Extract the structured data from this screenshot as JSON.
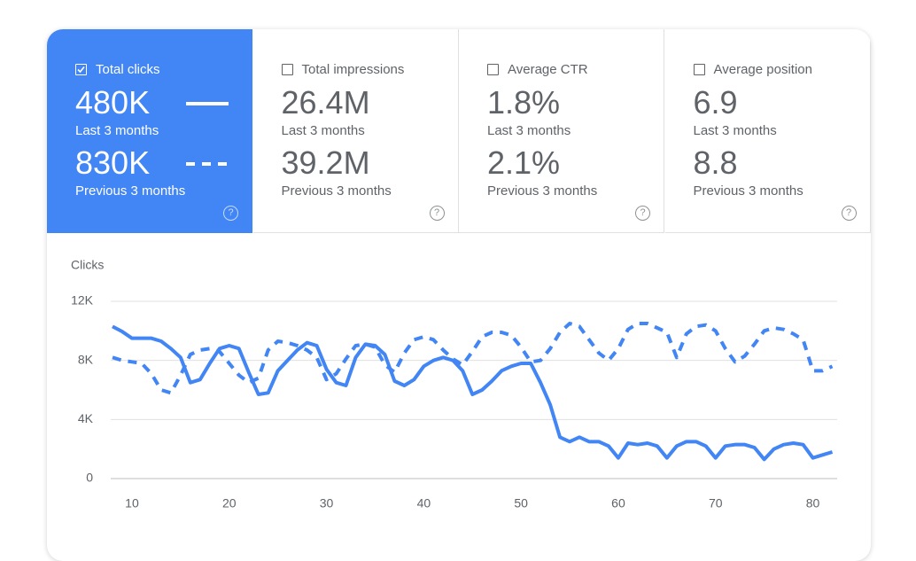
{
  "metrics": [
    {
      "label": "Total clicks",
      "checked": true,
      "current": "480K",
      "previous": "830K"
    },
    {
      "label": "Total impressions",
      "checked": false,
      "current": "26.4M",
      "current_period": "Last 3 months",
      "previous": "39.2M",
      "previous_period": "Previous 3 months"
    },
    {
      "label": "Average CTR",
      "checked": false,
      "current": "1.8%",
      "current_period": "Last 3 months",
      "previous": "2.1%",
      "previous_period": "Previous 3 months"
    },
    {
      "label": "Average position",
      "checked": false,
      "current": "6.9",
      "current_period": "Last 3 months",
      "previous": "8.8",
      "previous_period": "Previous 3 months"
    }
  ],
  "chart_data": {
    "type": "line",
    "y_label": "Clicks",
    "x": [
      8,
      9,
      10,
      11,
      12,
      13,
      14,
      15,
      16,
      17,
      18,
      19,
      20,
      21,
      22,
      23,
      24,
      25,
      26,
      27,
      28,
      29,
      30,
      31,
      32,
      33,
      34,
      35,
      36,
      37,
      38,
      39,
      40,
      41,
      42,
      43,
      44,
      45,
      46,
      47,
      48,
      49,
      50,
      51,
      52,
      53,
      54,
      55,
      56,
      57,
      58,
      59,
      60,
      61,
      62,
      63,
      64,
      65,
      66,
      67,
      68,
      69,
      70,
      71,
      72,
      73,
      74,
      75,
      76,
      77,
      78,
      79,
      80,
      81,
      82
    ],
    "series": [
      {
        "name": "Last 3 months",
        "color": "#4285f4",
        "dash": false,
        "values": [
          10300,
          9950,
          9500,
          9500,
          9500,
          9300,
          8800,
          8200,
          6500,
          6700,
          7800,
          8800,
          9000,
          8800,
          7200,
          5700,
          5800,
          7300,
          8000,
          8700,
          9200,
          9000,
          7400,
          6500,
          6300,
          8200,
          9100,
          9000,
          8400,
          6600,
          6300,
          6700,
          7600,
          8000,
          8200,
          8000,
          7300,
          5700,
          6000,
          6600,
          7300,
          7600,
          7800,
          7800,
          6500,
          5000,
          2800,
          2500,
          2800,
          2500,
          2500,
          2200,
          1400,
          2400,
          2300,
          2400,
          2200,
          1400,
          2200,
          2500,
          2500,
          2200,
          1400,
          2200,
          2300,
          2300,
          2100,
          1300,
          2000,
          2300,
          2400,
          2300,
          1400,
          1600,
          1800
        ]
      },
      {
        "name": "Previous 3 months",
        "color": "#4285f4",
        "dash": true,
        "values": [
          8200,
          8000,
          7900,
          7800,
          7100,
          6000,
          5800,
          7000,
          8400,
          8700,
          8800,
          8600,
          7800,
          7000,
          6500,
          6800,
          8700,
          9300,
          9200,
          9000,
          8700,
          8200,
          6700,
          7100,
          8100,
          9000,
          9100,
          8900,
          7700,
          7200,
          8500,
          9400,
          9600,
          9400,
          8700,
          8100,
          7700,
          8600,
          9600,
          9900,
          9900,
          9700,
          8900,
          7900,
          8000,
          8800,
          9900,
          10500,
          10300,
          9400,
          8500,
          8000,
          8800,
          10100,
          10500,
          10500,
          10200,
          9900,
          8200,
          9800,
          10300,
          10400,
          10000,
          8800,
          7900,
          8300,
          9100,
          10000,
          10200,
          10100,
          9800,
          9400,
          7300,
          7300,
          7600
        ]
      }
    ],
    "xlim": [
      8,
      82.5
    ],
    "xticks": [
      10,
      20,
      30,
      40,
      50,
      60,
      70,
      80
    ],
    "ylim": [
      0,
      12000
    ],
    "yticks": [
      0,
      {
        "value": 4000,
        "label": "4K"
      },
      {
        "value": 8000,
        "label": "8K"
      },
      {
        "value": 12000,
        "label": "12K"
      }
    ],
    "grid": true
  }
}
